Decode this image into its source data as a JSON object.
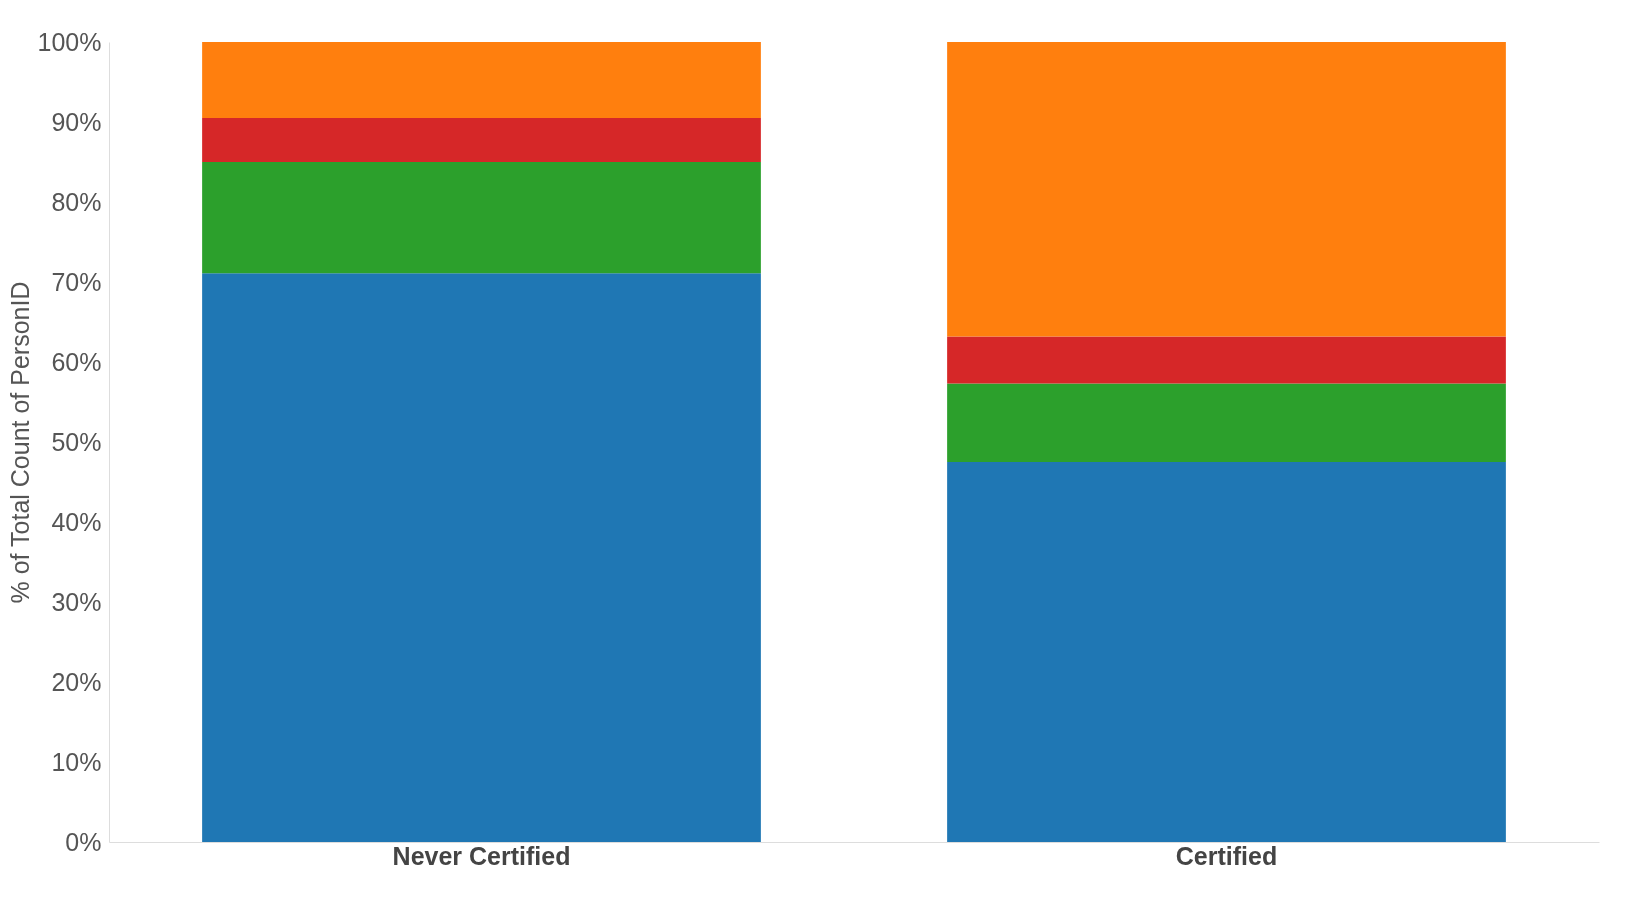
{
  "chart_data": {
    "type": "bar",
    "stacked": true,
    "ylabel": "% of Total Count of PersonID",
    "categories": [
      "Never Certified",
      "Certified"
    ],
    "series": [
      {
        "color": "#1f77b4",
        "values": [
          71.1,
          47.5
        ]
      },
      {
        "color": "#2ca02c",
        "values": [
          13.9,
          9.8
        ]
      },
      {
        "color": "#d62728",
        "values": [
          5.5,
          5.9
        ]
      },
      {
        "color": "#ff7f0e",
        "values": [
          9.5,
          36.8
        ]
      }
    ],
    "ylim": [
      0,
      100
    ],
    "yticks": [
      {
        "value": 0,
        "label": "0%"
      },
      {
        "value": 10,
        "label": "10%"
      },
      {
        "value": 20,
        "label": "20%"
      },
      {
        "value": 30,
        "label": "30%"
      },
      {
        "value": 40,
        "label": "40%"
      },
      {
        "value": 50,
        "label": "50%"
      },
      {
        "value": 60,
        "label": "60%"
      },
      {
        "value": 70,
        "label": "70%"
      },
      {
        "value": 80,
        "label": "80%"
      },
      {
        "value": 90,
        "label": "90%"
      },
      {
        "value": 100,
        "label": "100%"
      }
    ],
    "grid": false,
    "legend": false
  }
}
